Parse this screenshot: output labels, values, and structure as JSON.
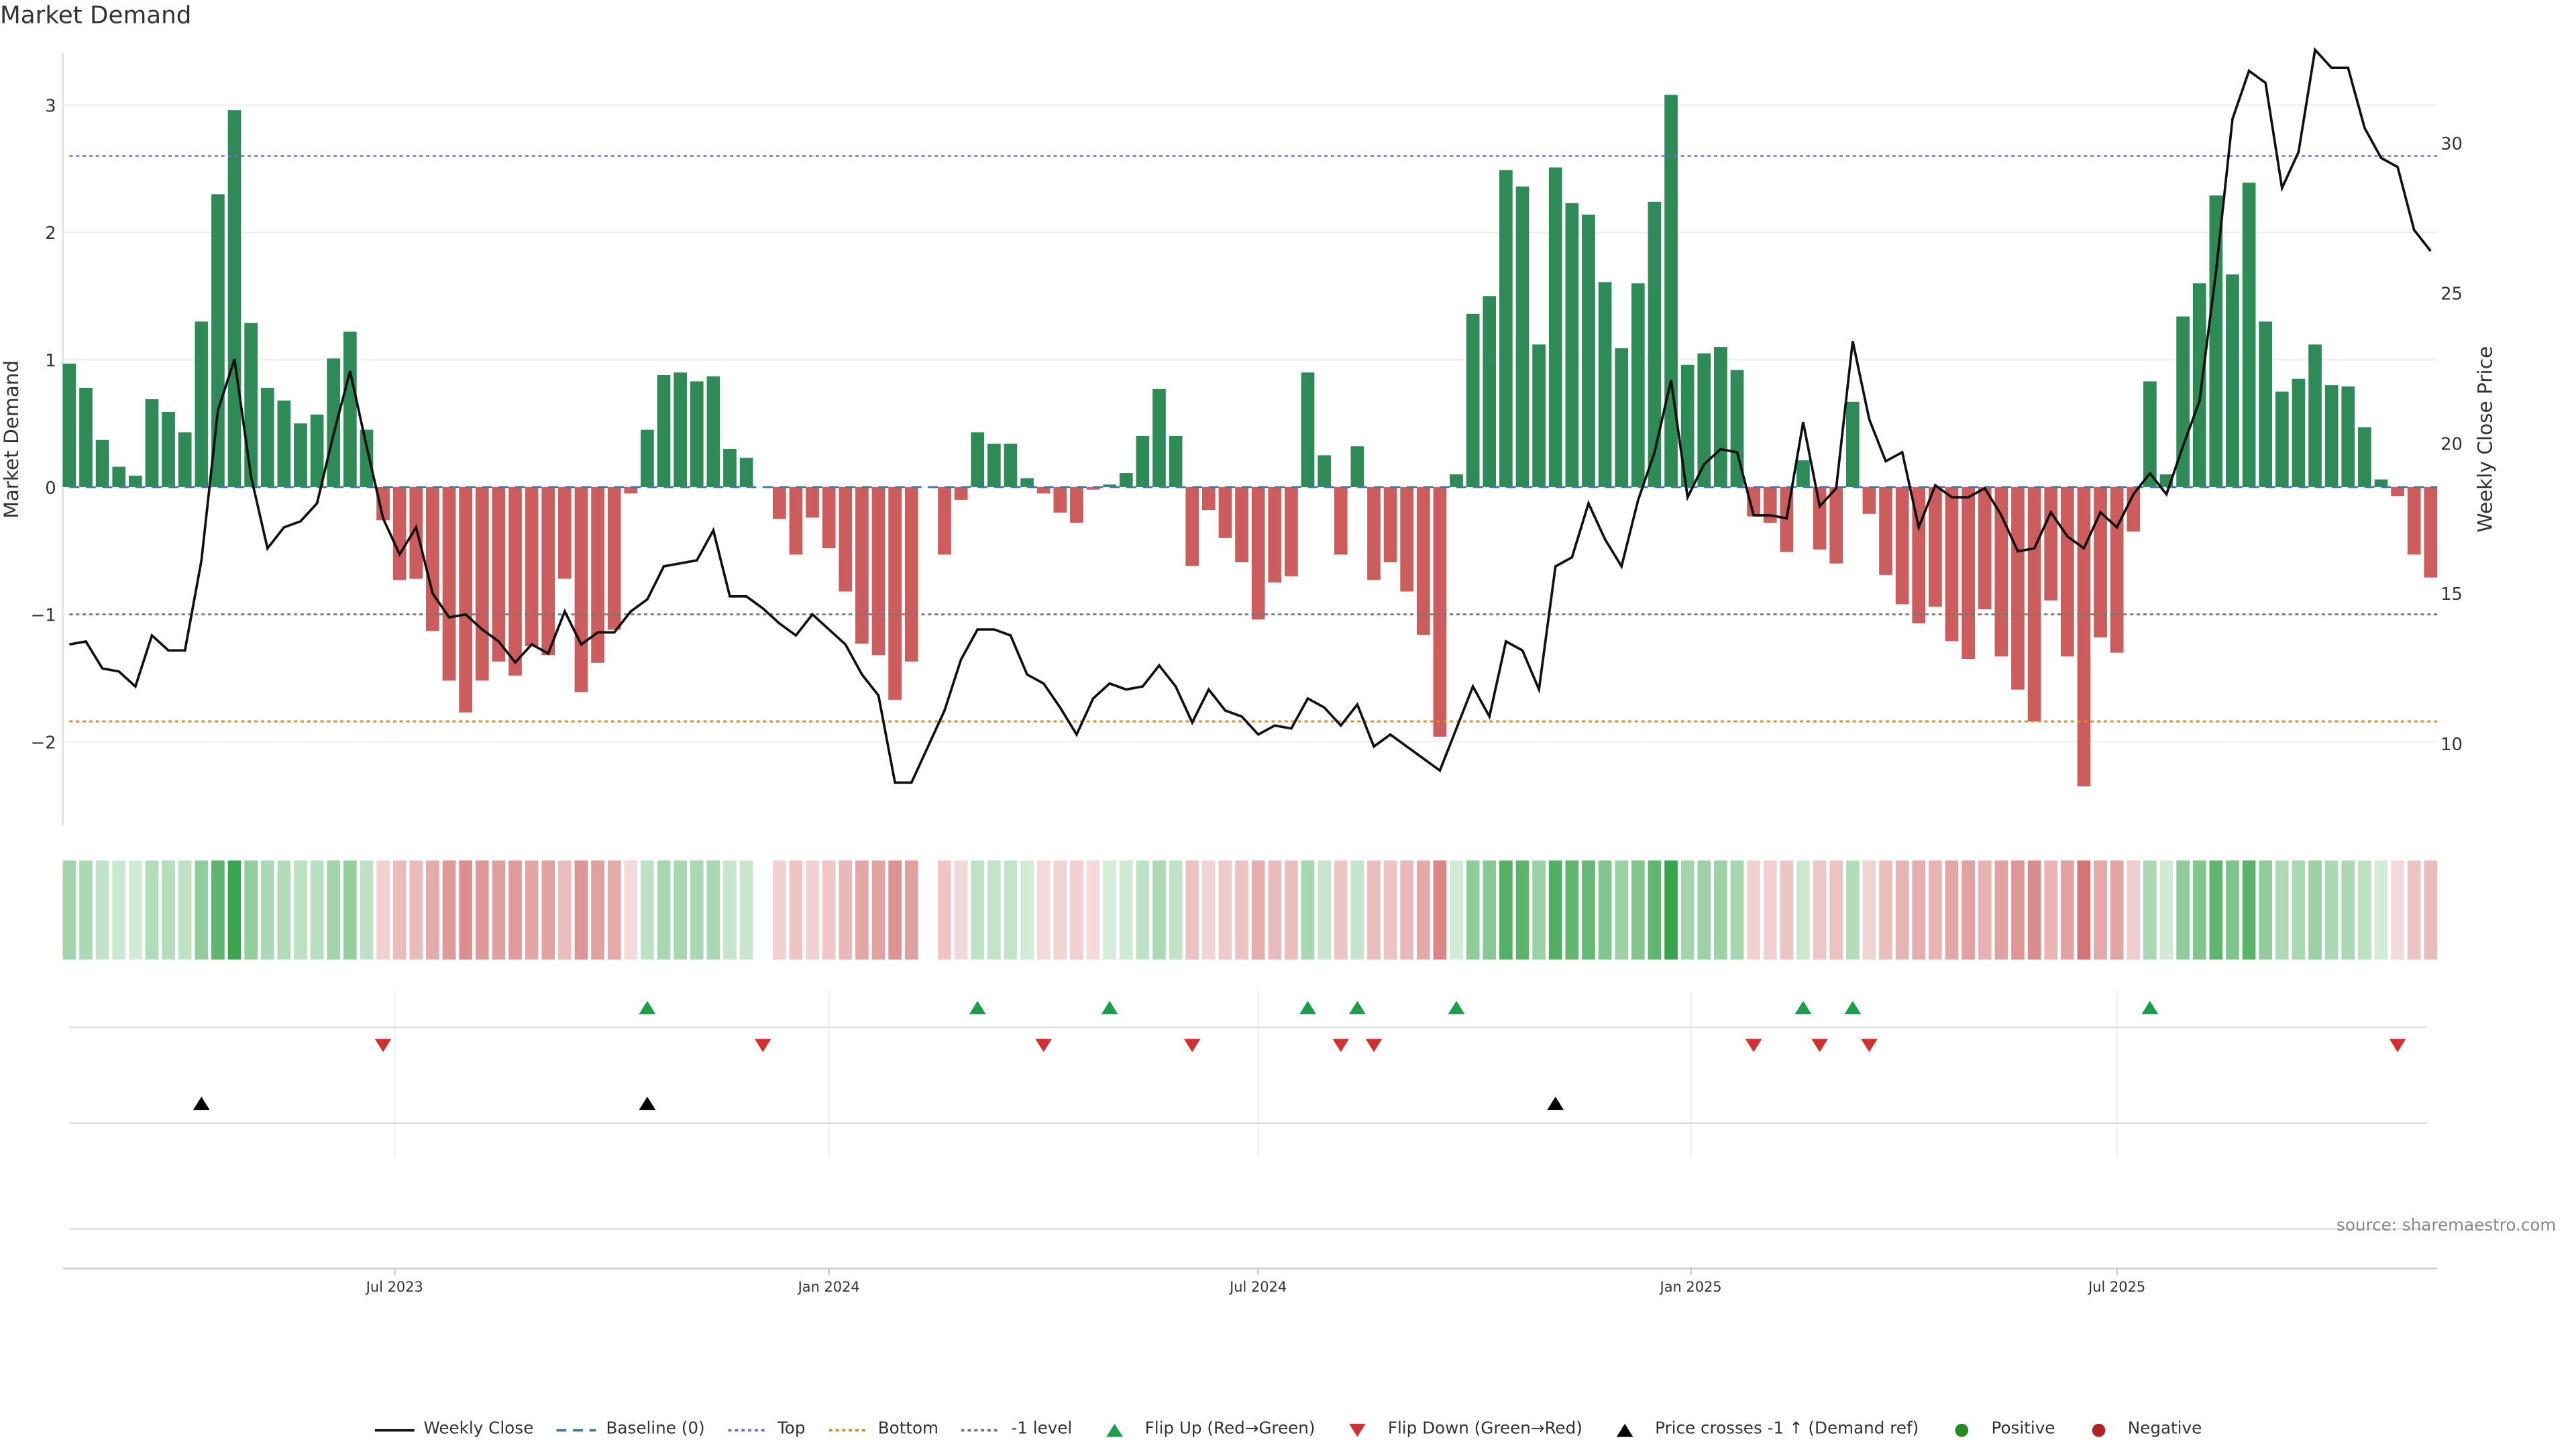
{
  "chart_data": {
    "type": "bar",
    "title": "Market Demand",
    "ylabel": "Market Demand",
    "y2label": "Weekly Close Price",
    "ylim": [
      -2.66,
      3.41
    ],
    "y2lim": [
      7.26,
      33.0
    ],
    "yticks": [
      -2,
      -1,
      0,
      1,
      2,
      3
    ],
    "yticklabels": [
      "−2",
      "−1",
      "0",
      "1",
      "2",
      "3"
    ],
    "y2ticks": [
      10,
      15,
      20,
      25,
      30
    ],
    "y2ticklabels": [
      "10",
      "15",
      "20",
      "25",
      "30"
    ],
    "x_unit": "week index",
    "xticks": [
      {
        "week": 19.7,
        "label": "Jul 2023"
      },
      {
        "week": 46,
        "label": "Jan 2024"
      },
      {
        "week": 72,
        "label": "Jul 2024"
      },
      {
        "week": 98.2,
        "label": "Jan 2025"
      },
      {
        "week": 124,
        "label": "Jul 2025"
      }
    ],
    "reference_lines": {
      "baseline": 0,
      "top": 2.6,
      "bottom": -1.84,
      "minus_one": -1
    },
    "demand": [
      0.97,
      0.78,
      0.37,
      0.16,
      0.09,
      0.69,
      0.59,
      0.43,
      1.3,
      2.3,
      2.96,
      1.29,
      0.78,
      0.68,
      0.5,
      0.57,
      1.01,
      1.22,
      0.45,
      -0.26,
      -0.73,
      -0.72,
      -1.13,
      -1.52,
      -1.77,
      -1.52,
      -1.37,
      -1.48,
      -1.25,
      -1.32,
      -0.72,
      -1.61,
      -1.38,
      -1.12,
      -0.05,
      0.45,
      0.88,
      0.9,
      0.83,
      0.87,
      0.3,
      0.23,
      0,
      -0.25,
      -0.53,
      -0.24,
      -0.48,
      -0.82,
      -1.23,
      -1.32,
      -1.67,
      -1.37,
      0,
      -0.53,
      -0.1,
      0.43,
      0.34,
      0.34,
      0.07,
      -0.05,
      -0.2,
      -0.28,
      -0.02,
      0.02,
      0.11,
      0.4,
      0.77,
      0.4,
      -0.62,
      -0.18,
      -0.4,
      -0.59,
      -1.04,
      -0.75,
      -0.7,
      0.9,
      0.25,
      -0.53,
      0.32,
      -0.73,
      -0.59,
      -0.82,
      -1.16,
      -1.96,
      0.1,
      1.36,
      1.5,
      2.49,
      2.36,
      1.12,
      2.51,
      2.23,
      2.14,
      1.61,
      1.09,
      1.6,
      2.24,
      3.08,
      0.96,
      1.05,
      1.1,
      0.92,
      -0.23,
      -0.28,
      -0.51,
      0.21,
      -0.49,
      -0.6,
      0.67,
      -0.21,
      -0.69,
      -0.92,
      -1.07,
      -0.94,
      -1.21,
      -1.35,
      -0.96,
      -1.33,
      -1.59,
      -1.84,
      -0.89,
      -1.33,
      -2.35,
      -1.18,
      -1.3,
      -0.35,
      0.83,
      0.1,
      1.34,
      1.6,
      2.29,
      1.67,
      2.39,
      1.3,
      0.75,
      0.85,
      1.12,
      0.8,
      0.79,
      0.47,
      0.06,
      -0.07,
      -0.53,
      -0.71
    ],
    "weekly_close": [
      13.3,
      13.4,
      12.5,
      12.4,
      11.9,
      13.6,
      13.1,
      13.1,
      16.1,
      21.1,
      22.8,
      18.9,
      16.5,
      17.2,
      17.4,
      18.0,
      20.3,
      22.4,
      19.9,
      17.5,
      16.3,
      17.2,
      15.0,
      14.2,
      14.3,
      13.8,
      13.4,
      12.7,
      13.3,
      13.0,
      14.4,
      13.3,
      13.7,
      13.7,
      14.4,
      14.8,
      15.9,
      16.0,
      16.1,
      17.1,
      14.9,
      14.9,
      14.5,
      14.0,
      13.6,
      14.3,
      13.8,
      13.3,
      12.3,
      11.6,
      8.7,
      8.7,
      9.9,
      11.1,
      12.8,
      13.8,
      13.8,
      13.6,
      12.3,
      12.0,
      11.2,
      10.3,
      11.5,
      12.0,
      11.8,
      11.9,
      12.6,
      11.9,
      10.7,
      11.8,
      11.1,
      10.9,
      10.3,
      10.6,
      10.5,
      11.5,
      11.2,
      10.6,
      11.3,
      9.9,
      10.3,
      9.9,
      9.5,
      9.1,
      10.5,
      11.9,
      10.9,
      13.4,
      13.1,
      11.8,
      15.9,
      16.2,
      18.0,
      16.8,
      15.9,
      18.1,
      19.7,
      22.1,
      18.2,
      19.3,
      19.8,
      19.7,
      17.6,
      17.6,
      17.5,
      20.7,
      17.9,
      18.5,
      23.4,
      20.8,
      19.4,
      19.7,
      17.2,
      18.6,
      18.2,
      18.2,
      18.5,
      17.6,
      16.4,
      16.5,
      17.7,
      16.9,
      16.5,
      17.7,
      17.2,
      18.3,
      19.0,
      18.3,
      19.9,
      21.4,
      25.7,
      30.8,
      32.4,
      32.0,
      28.5,
      29.7,
      33.1,
      32.5,
      32.5,
      30.5,
      29.5,
      29.2,
      27.1,
      26.4
    ],
    "flip_up_weeks": [
      35,
      55,
      63,
      75,
      78,
      84,
      105,
      108,
      126
    ],
    "flip_down_weeks": [
      19,
      42,
      59,
      68,
      77,
      79,
      102,
      106,
      109,
      141
    ],
    "price_cross_weeks": [
      8,
      35,
      90
    ],
    "legend": [
      {
        "label": "Weekly Close",
        "kind": "line",
        "color": "#111111"
      },
      {
        "label": "Baseline (0)",
        "kind": "dash",
        "color": "#3a7ab0"
      },
      {
        "label": "Top",
        "kind": "dot",
        "color": "#7b68d8"
      },
      {
        "label": "Bottom",
        "kind": "dot",
        "color": "#e08a2a"
      },
      {
        "label": "-1 level",
        "kind": "dot",
        "color": "#777777"
      },
      {
        "label": "Flip Up (Red→Green)",
        "kind": "up",
        "color": "#1a9e4a"
      },
      {
        "label": "Flip Down (Green→Red)",
        "kind": "down",
        "color": "#d32f2f"
      },
      {
        "label": "Price crosses -1 ↑ (Demand ref)",
        "kind": "up",
        "color": "#000000"
      },
      {
        "label": "Positive",
        "kind": "dot-marker",
        "color": "#228b22"
      },
      {
        "label": "Negative",
        "kind": "dot-marker",
        "color": "#b22222"
      }
    ],
    "colors": {
      "positive_bar": "#2e8b57",
      "negative_bar": "#cd5c5c"
    }
  },
  "source": "source: sharemaestro.com"
}
